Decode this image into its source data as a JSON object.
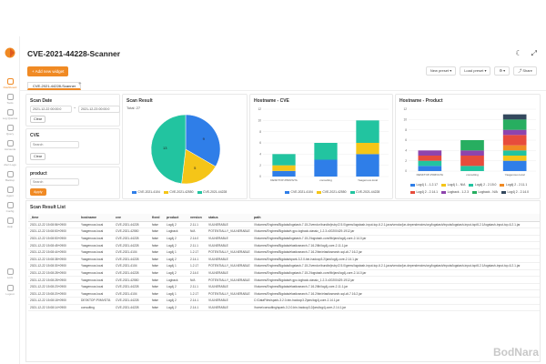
{
  "app": {
    "title": "CVE-2021-44228-Scanner",
    "accent": "#f08a24"
  },
  "sidebar": {
    "items": [
      {
        "label": "Dashboard",
        "icon": "dashboard-icon",
        "active": true
      },
      {
        "label": "Tools",
        "icon": "wrench-icon"
      },
      {
        "label": "Log Queries",
        "icon": "search-icon"
      },
      {
        "label": "Query",
        "icon": "database-icon"
      },
      {
        "label": "Accounts",
        "icon": "users-icon"
      },
      {
        "label": "Alert Logs",
        "icon": "bell-icon"
      },
      {
        "label": "Backup",
        "icon": "backup-icon"
      },
      {
        "label": "Agent",
        "icon": "agent-icon"
      },
      {
        "label": "Config",
        "icon": "gear-icon"
      },
      {
        "label": "Help",
        "icon": "help-icon"
      }
    ],
    "bottom": [
      {
        "label": "Lock",
        "icon": "lock-icon"
      },
      {
        "label": "Logout",
        "icon": "logout-icon"
      }
    ]
  },
  "toolbar": {
    "add_label": "+ Add new widget",
    "new_preset": "New preset",
    "load_preset": "Load preset",
    "settings": "⚙ ▾",
    "share": "Share"
  },
  "tabs": [
    {
      "label": "CVE-2021-44228-Scanner"
    }
  ],
  "scan_date": {
    "title": "Scan Date",
    "from": "2021-12-22 00:00:0",
    "to": "2021-12-23 00:00:0",
    "clear": "Clear"
  },
  "cve_filter": {
    "title": "CVE",
    "placeholder": "Search",
    "clear": "Clear"
  },
  "product_filter": {
    "title": "product",
    "placeholder": "Search",
    "apply": "Apply"
  },
  "scan_result": {
    "title": "Scan Result",
    "total": "Total: 27"
  },
  "hostname_cve": {
    "title": "Hostname - CVE"
  },
  "hostname_product": {
    "title": "Hostname - Product"
  },
  "colors": {
    "blue": "#2f7ee8",
    "yellow": "#f5c518",
    "teal": "#22c4a0",
    "orange": "#f08a24",
    "red": "#e74c3c",
    "purple": "#8e44ad",
    "green": "#27ae60",
    "navy": "#34495e",
    "pink": "#e91e63"
  },
  "chart_data": [
    {
      "type": "pie",
      "title": "Scan Result",
      "labels": [
        "CVE-2021-4104",
        "CVE-2021-42550",
        "CVE-2021-44228"
      ],
      "values": [
        9,
        5,
        13
      ],
      "colors": [
        "#2f7ee8",
        "#f5c518",
        "#22c4a0"
      ]
    },
    {
      "type": "bar",
      "stacked": true,
      "title": "Hostname - CVE",
      "categories": [
        "DESKTOP-P0MVGTA",
        "consulting",
        "Yaagenous.local"
      ],
      "series": [
        {
          "name": "CVE-2021-4104",
          "values": [
            1,
            3,
            4
          ]
        },
        {
          "name": "CVE-2021-42550",
          "values": [
            1,
            0,
            2
          ]
        },
        {
          "name": "CVE-2021-44228",
          "values": [
            2,
            3,
            4
          ]
        }
      ],
      "ylim": [
        0,
        12
      ],
      "grid": true,
      "legend": "bottom"
    },
    {
      "type": "bar",
      "stacked": true,
      "title": "Hostname - Product",
      "categories": [
        "DESKTOP-P0MVGTA",
        "consulting",
        "Yaagenous.local"
      ],
      "series": [
        {
          "name": "Log4j 1 - 1.2.17",
          "values": [
            1,
            0,
            2
          ]
        },
        {
          "name": "Log4j 1 - N/A",
          "values": [
            0,
            0,
            1
          ]
        },
        {
          "name": "Log4j 2 - 2.15.0",
          "values": [
            1,
            1,
            1
          ]
        },
        {
          "name": "Log4j 2 - 2.11.1",
          "values": [
            0,
            0,
            1
          ]
        },
        {
          "name": "Log4j 2 - 2.14.1",
          "values": [
            1,
            2,
            2
          ]
        },
        {
          "name": "Logback - 1.2.3",
          "values": [
            1,
            1,
            1
          ]
        },
        {
          "name": "Logback - N/A",
          "values": [
            0,
            2,
            2
          ]
        },
        {
          "name": "Log4j 2 - 2.14.0",
          "values": [
            0,
            0,
            1
          ]
        }
      ],
      "ylim": [
        0,
        12
      ],
      "grid": true,
      "legend": "bottom"
    }
  ],
  "table": {
    "title": "Scan Result List",
    "columns": [
      "_time",
      "hostname",
      "cve",
      "fixed",
      "product",
      "version",
      "status",
      "path"
    ],
    "rows": [
      [
        "2021-12-22 15:08:56+0900",
        "Yaagenous.local",
        "CVE-2021-44228",
        "false",
        "Log4j 2",
        "2.11.1",
        "VULNERABLE",
        "/Volumes/Engines/Bigdata/logstash-7.15.2/vendor/bundle/jruby/2.5.0/gems/logstash-input-tcp-6.2.1-java/vendor/jar-dependencies/org/logstash/inputs/logstash-input-tcp/6.2.1/logstash-input-tcp-6.2.1.jar"
      ],
      [
        "2021-12-22 15:08:53+0900",
        "Yaagenous.local",
        "CVE-2021-42550",
        "false",
        "Logback",
        "N/A",
        "POTENTIALLY_VULNERABLE",
        "/Volumes/Engines/Bigdata/rt.gpu.logback.classic_1.2.3.v20200429-1912.jar"
      ],
      [
        "2021-12-22 15:08:53+0900",
        "Yaagenous.local",
        "CVE-2021-44228",
        "false",
        "Log4j 2",
        "2.14.0",
        "VULNERABLE",
        "/Volumes/Engines/Bigdata/logstash-7.15.2/logstash-core/lib/jars/log4j-core-2.14.0.jar"
      ],
      [
        "2021-12-22 15:08:45+0900",
        "Yaagenous.local",
        "CVE-2021-44228",
        "false",
        "Log4j 2",
        "2.11.1",
        "VULNERABLE",
        "/Volumes/Engines/Bigdata/elasticsearch-7.16.2/lib/log4j-core-2.11.1.jar"
      ],
      [
        "2021-12-22 15:08:44+0900",
        "Yaagenous.local",
        "CVE-2021-4104",
        "false",
        "Log4j 1",
        "1.2.17",
        "POTENTIALLY_VULNERABLE",
        "/Volumes/Engines/Bigdata/elasticsearch-7.16.2/bin/elasticsearch-sql-cli-7.16.2.jar"
      ],
      [
        "2021-12-22 15:08:38+0900",
        "Yaagenous.local",
        "CVE-2021-44228",
        "false",
        "Log4j 2",
        "2.14.1",
        "VULNERABLE",
        "/Volumes/Engines/Bigdata/spark-3.2.0-bin-hadoop3.2/jars/log4j-core-2.14.1.jar"
      ],
      [
        "2021-12-22 15:08:30+0900",
        "Yaagenous.local",
        "CVE-2021-4104",
        "false",
        "Log4j 1",
        "1.2.17",
        "POTENTIALLY_VULNERABLE",
        "/Volumes/Engines/Bigdata/logstash-7.15.2/vendor/bundle/jruby/2.5.0/gems/logstash-input-tcp-6.2.1-java/vendor/jar-dependencies/org/logstash/inputs/logstash-input-tcp/6.2.1/logstash-input-tcp-6.2.1.jar"
      ],
      [
        "2021-12-22 15:08:28+0900",
        "Yaagenous.local",
        "CVE-2021-44228",
        "false",
        "Log4j 2",
        "2.14.0",
        "VULNERABLE",
        "/Volumes/Engines/Bigdata/logstash-7.15.2/logstash-core/lib/jars/log4j-core-2.14.0.jar"
      ],
      [
        "2021-12-22 15:08:28+0900",
        "Yaagenous.local",
        "CVE-2021-42550",
        "false",
        "Logback",
        "N/A",
        "POTENTIALLY_VULNERABLE",
        "/Volumes/Engines/Bigdata/rt.gpu.logback.classic_1.2.3.v20200429-1912.jar"
      ],
      [
        "2021-12-22 15:08:23+0900",
        "Yaagenous.local",
        "CVE-2021-44228",
        "false",
        "Log4j 2",
        "2.11.1",
        "VULNERABLE",
        "/Volumes/Engines/Bigdata/elasticsearch-7.16.2/lib/log4j-core-2.11.1.jar"
      ],
      [
        "2021-12-22 15:08:20+0900",
        "Yaagenous.local",
        "CVE-2021-4104",
        "false",
        "Log4j 1",
        "1.2.17",
        "POTENTIALLY_VULNERABLE",
        "/Volumes/Engines/Bigdata/elasticsearch-7.16.2/bin/elasticsearch-sql-cli-7.16.2.jar"
      ],
      [
        "2021-12-22 15:08:18+0900",
        "DESKTOP-P0MVGTA",
        "CVE-2021-44228",
        "false",
        "Log4j 2",
        "2.14.1",
        "VULNERABLE",
        "C:\\DataFiles\\spark-3.2.0-bin-hadoop3.2\\jars\\log4j-core-2.14.1.jar"
      ],
      [
        "2021-12-22 15:08:14+0900",
        "consulting",
        "CVE-2021-44228",
        "false",
        "Log4j 2",
        "2.14.1",
        "VULNERABLE",
        "/home/consulting/spark-3.2.0-bin-hadoop3.2/jars/log4j-core-2.14.1.jar"
      ]
    ]
  },
  "watermark": "BodNara"
}
